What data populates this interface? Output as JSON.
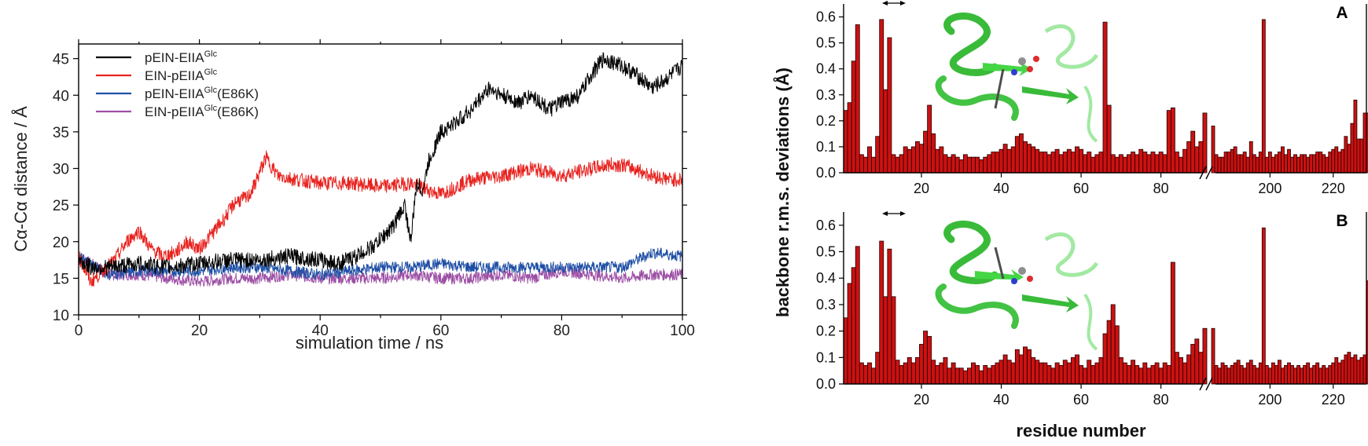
{
  "chart_data": [
    {
      "type": "line",
      "xlabel": "simulation time / ns",
      "ylabel": "Cα-Cα distance  / Å",
      "xlim": [
        0,
        100
      ],
      "ylim": [
        10,
        47
      ],
      "xticks": [
        0,
        20,
        40,
        60,
        80,
        100
      ],
      "yticks": [
        10,
        15,
        20,
        25,
        30,
        35,
        40,
        45
      ],
      "xtick_labels": [
        "0",
        "20",
        "40",
        "60",
        "80",
        "100"
      ],
      "ytick_labels": [
        "10",
        "15",
        "20",
        "25",
        "30",
        "35",
        "40",
        "45"
      ],
      "legend_position": "top-left",
      "series": [
        {
          "name": "pEIN-EIIA",
          "name_sup": "Glc",
          "color": "#000000",
          "x": [
            0,
            2,
            5,
            10,
            15,
            20,
            25,
            30,
            35,
            40,
            43,
            46,
            49,
            52,
            54,
            55,
            56,
            57,
            58,
            59,
            60,
            62,
            65,
            68,
            70,
            73,
            75,
            78,
            80,
            83,
            85,
            87,
            90,
            92,
            95,
            97,
            100
          ],
          "y": [
            17.5,
            16.5,
            16.5,
            17,
            16.5,
            17,
            17.5,
            17.5,
            18,
            17.5,
            17,
            18,
            19.5,
            22,
            25,
            20,
            28,
            27,
            31,
            33,
            35,
            36,
            38,
            41,
            40,
            39,
            40,
            38,
            39,
            40,
            43,
            45,
            44,
            43,
            41,
            42,
            44
          ]
        },
        {
          "name": "EIN-pEIIA",
          "name_sup": "Glc",
          "color": "#e8231f",
          "x": [
            0,
            2,
            4,
            6,
            8,
            10,
            12,
            14,
            16,
            18,
            20,
            22,
            24,
            26,
            28,
            29,
            30,
            31,
            33,
            36,
            40,
            45,
            50,
            55,
            58,
            60,
            65,
            70,
            75,
            80,
            85,
            88,
            90,
            92,
            95,
            98,
            100
          ],
          "y": [
            18,
            14.5,
            16,
            17.5,
            20,
            21.5,
            19,
            18,
            18.5,
            20,
            19,
            21,
            23,
            25.5,
            26,
            27.5,
            29.5,
            31.5,
            29,
            28.5,
            28,
            28,
            27.5,
            28,
            27,
            26.5,
            28.5,
            29,
            30,
            29,
            30,
            30.5,
            30.5,
            30,
            29,
            28.5,
            28.5
          ]
        },
        {
          "name": "pEIN-EIIA",
          "name_sup": "Glc",
          "name_suffix": "(E86K)",
          "color": "#1f4fa5",
          "x": [
            0,
            5,
            10,
            15,
            20,
            25,
            30,
            35,
            40,
            45,
            50,
            55,
            60,
            65,
            70,
            75,
            80,
            85,
            90,
            95,
            100
          ],
          "y": [
            18,
            15.5,
            16,
            16,
            16,
            16.5,
            16.5,
            16,
            15.5,
            16,
            16.5,
            16.5,
            17,
            16.5,
            16.5,
            16.5,
            16.5,
            16.5,
            16.5,
            18.5,
            18
          ]
        },
        {
          "name": "EIN-pEIIA",
          "name_sup": "Glc",
          "name_suffix": "(E86K)",
          "color": "#9c4fa5",
          "x": [
            0,
            5,
            10,
            15,
            20,
            25,
            30,
            35,
            40,
            45,
            50,
            55,
            60,
            65,
            70,
            75,
            80,
            85,
            90,
            95,
            100
          ],
          "y": [
            18,
            15.5,
            15.5,
            15,
            14.5,
            15,
            15,
            15.5,
            15,
            15,
            15,
            15.5,
            15,
            15,
            15.5,
            15,
            16,
            15.5,
            15,
            15.5,
            15.5
          ]
        }
      ]
    },
    {
      "type": "bar",
      "panel_label": "A",
      "ylabel": "backbone r.m.s. deviations (Å)",
      "ylim": [
        0,
        0.65
      ],
      "yticks": [
        0.0,
        0.1,
        0.2,
        0.3,
        0.4,
        0.5,
        0.6
      ],
      "ytick_labels": [
        "0.0",
        "0.1",
        "0.2",
        "0.3",
        "0.4",
        "0.5",
        "0.6"
      ],
      "xticks": [
        20,
        40,
        60,
        80,
        200,
        220
      ],
      "xtick_labels": [
        "20",
        "40",
        "60",
        "80",
        "200",
        "220"
      ],
      "x_break": true,
      "segments": [
        {
          "x_start": 1,
          "values": [
            0.24,
            0.27,
            0.43,
            0.57,
            0.07,
            0.06,
            0.1,
            0.06,
            0.14,
            0.59,
            0.32,
            0.52,
            0.07,
            0.06,
            0.07,
            0.1,
            0.09,
            0.1,
            0.12,
            0.11,
            0.16,
            0.26,
            0.15,
            0.09,
            0.1,
            0.07,
            0.06,
            0.07,
            0.06,
            0.05,
            0.07,
            0.06,
            0.06,
            0.06,
            0.05,
            0.06,
            0.07,
            0.08,
            0.08,
            0.09,
            0.11,
            0.09,
            0.1,
            0.14,
            0.15,
            0.12,
            0.11,
            0.1,
            0.09,
            0.08,
            0.08,
            0.07,
            0.08,
            0.09,
            0.07,
            0.08,
            0.09,
            0.08,
            0.1,
            0.09,
            0.07,
            0.08,
            0.06,
            0.07,
            0.08,
            0.58,
            0.26,
            0.07,
            0.06,
            0.07,
            0.06,
            0.07,
            0.08,
            0.07,
            0.09,
            0.08,
            0.07,
            0.08,
            0.07,
            0.08,
            0.07,
            0.24,
            0.25,
            0.08,
            0.06,
            0.09,
            0.12,
            0.16,
            0.1,
            0.12,
            0.23
          ]
        },
        {
          "x_start": 182,
          "values": [
            0.18,
            0.07,
            0.06,
            0.06,
            0.08,
            0.08,
            0.09,
            0.1,
            0.07,
            0.07,
            0.08,
            0.06,
            0.12,
            0.07,
            0.06,
            0.08,
            0.59,
            0.06,
            0.08,
            0.06,
            0.07,
            0.08,
            0.1,
            0.07,
            0.09,
            0.06,
            0.07,
            0.06,
            0.07,
            0.07,
            0.06,
            0.07,
            0.07,
            0.08,
            0.08,
            0.07,
            0.06,
            0.08,
            0.09,
            0.1,
            0.08,
            0.09,
            0.14,
            0.11,
            0.19,
            0.28,
            0.13,
            0.13,
            0.23,
            0.23
          ]
        }
      ]
    },
    {
      "type": "bar",
      "panel_label": "B",
      "xlabel": "residue number",
      "ylim": [
        0,
        0.65
      ],
      "yticks": [
        0.0,
        0.1,
        0.2,
        0.3,
        0.4,
        0.5,
        0.6
      ],
      "ytick_labels": [
        "0.0",
        "0.1",
        "0.2",
        "0.3",
        "0.4",
        "0.5",
        "0.6"
      ],
      "xticks": [
        20,
        40,
        60,
        80,
        200,
        220
      ],
      "xtick_labels": [
        "20",
        "40",
        "60",
        "80",
        "200",
        "220"
      ],
      "x_break": true,
      "segments": [
        {
          "x_start": 1,
          "values": [
            0.25,
            0.38,
            0.44,
            0.52,
            0.08,
            0.07,
            0.08,
            0.06,
            0.12,
            0.54,
            0.33,
            0.51,
            0.33,
            0.09,
            0.07,
            0.08,
            0.1,
            0.08,
            0.1,
            0.15,
            0.2,
            0.18,
            0.09,
            0.07,
            0.08,
            0.1,
            0.06,
            0.08,
            0.06,
            0.06,
            0.05,
            0.06,
            0.08,
            0.07,
            0.05,
            0.07,
            0.06,
            0.07,
            0.08,
            0.09,
            0.11,
            0.09,
            0.08,
            0.13,
            0.11,
            0.14,
            0.13,
            0.1,
            0.09,
            0.08,
            0.08,
            0.07,
            0.06,
            0.08,
            0.07,
            0.09,
            0.08,
            0.1,
            0.11,
            0.07,
            0.06,
            0.09,
            0.07,
            0.08,
            0.1,
            0.19,
            0.24,
            0.3,
            0.22,
            0.1,
            0.08,
            0.07,
            0.09,
            0.07,
            0.06,
            0.08,
            0.06,
            0.07,
            0.08,
            0.06,
            0.08,
            0.07,
            0.46,
            0.12,
            0.1,
            0.08,
            0.11,
            0.15,
            0.17,
            0.12,
            0.21
          ]
        },
        {
          "x_start": 182,
          "values": [
            0.21,
            0.07,
            0.06,
            0.08,
            0.07,
            0.06,
            0.07,
            0.08,
            0.09,
            0.07,
            0.06,
            0.08,
            0.09,
            0.07,
            0.06,
            0.08,
            0.59,
            0.07,
            0.06,
            0.08,
            0.07,
            0.09,
            0.06,
            0.07,
            0.08,
            0.07,
            0.06,
            0.07,
            0.06,
            0.07,
            0.08,
            0.06,
            0.07,
            0.08,
            0.06,
            0.07,
            0.06,
            0.07,
            0.08,
            0.1,
            0.08,
            0.09,
            0.11,
            0.12,
            0.1,
            0.11,
            0.09,
            0.1,
            0.11,
            0.39
          ]
        }
      ]
    }
  ]
}
